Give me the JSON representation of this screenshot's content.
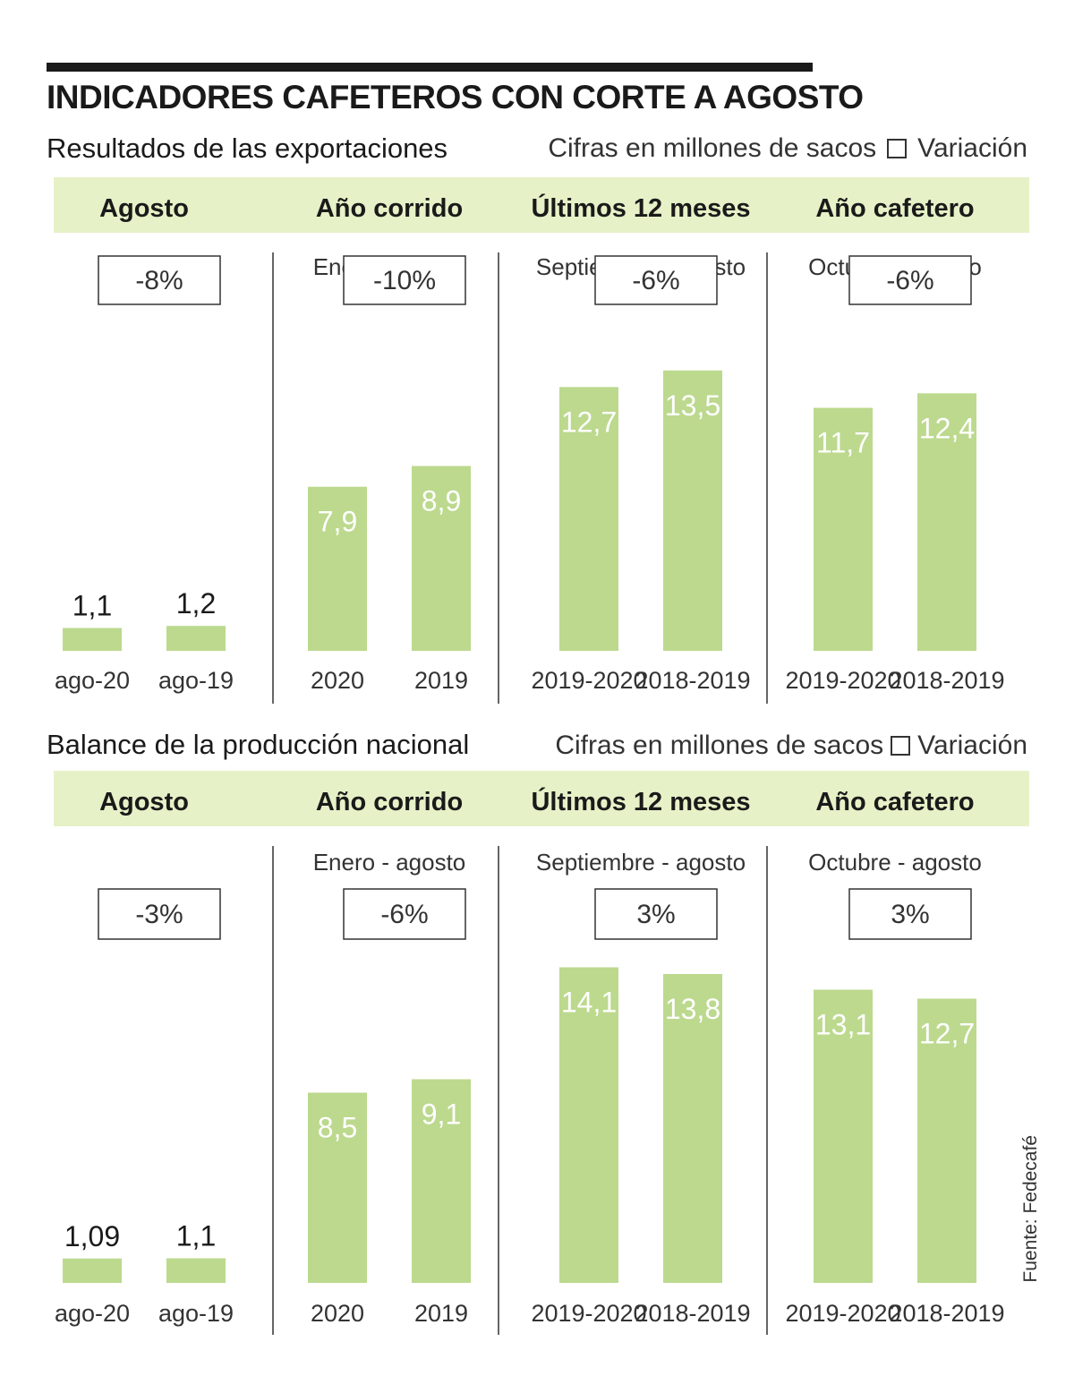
{
  "title": "INDICADORES CAFETEROS CON CORTE A AGOSTO",
  "source": "Fuente: Fedecafé",
  "colors": {
    "bar": "#bcd98e",
    "header_band": "#e6f1c7",
    "text": "#1a1a1a",
    "bar_label_inside": "#ffffff"
  },
  "chart_data": [
    {
      "type": "bar",
      "title": "Resultados de las exportaciones",
      "unit_note": "Cifras en millones de sacos",
      "legend": "Variación",
      "groups": [
        {
          "header": "Agosto",
          "subtitle": "",
          "variation": "-8%",
          "categories": [
            "ago-20",
            "ago-19"
          ],
          "values": [
            1.1,
            1.2
          ],
          "value_labels": [
            "1,1",
            "1,2"
          ]
        },
        {
          "header": "Año corrido",
          "subtitle": "Enero - agosto",
          "variation": "-10%",
          "categories": [
            "2020",
            "2019"
          ],
          "values": [
            7.9,
            8.9
          ],
          "value_labels": [
            "7,9",
            "8,9"
          ]
        },
        {
          "header": "Últimos 12 meses",
          "subtitle": "Septiembre - agosto",
          "variation": "-6%",
          "categories": [
            "2019-2020",
            "2018-2019"
          ],
          "values": [
            12.7,
            13.5
          ],
          "value_labels": [
            "12,7",
            "13,5"
          ]
        },
        {
          "header": "Año cafetero",
          "subtitle": "Octubre - agosto",
          "variation": "-6%",
          "categories": [
            "2019-2020",
            "2018-2019"
          ],
          "values": [
            11.7,
            12.4
          ],
          "value_labels": [
            "11,7",
            "12,4"
          ]
        }
      ]
    },
    {
      "type": "bar",
      "title": "Balance de la producción nacional",
      "unit_note": "Cifras en millones de sacos",
      "legend": "Variación",
      "groups": [
        {
          "header": "Agosto",
          "subtitle": "",
          "variation": "-3%",
          "categories": [
            "ago-20",
            "ago-19"
          ],
          "values": [
            1.09,
            1.1
          ],
          "value_labels": [
            "1,09",
            "1,1"
          ]
        },
        {
          "header": "Año corrido",
          "subtitle": "Enero - agosto",
          "variation": "-6%",
          "categories": [
            "2020",
            "2019"
          ],
          "values": [
            8.5,
            9.1
          ],
          "value_labels": [
            "8,5",
            "9,1"
          ]
        },
        {
          "header": "Últimos 12 meses",
          "subtitle": "Septiembre - agosto",
          "variation": "3%",
          "categories": [
            "2019-2020",
            "2018-2019"
          ],
          "values": [
            14.1,
            13.8
          ],
          "value_labels": [
            "14,1",
            "13,8"
          ]
        },
        {
          "header": "Año cafetero",
          "subtitle": "Octubre - agosto",
          "variation": "3%",
          "categories": [
            "2019-2020",
            "2018-2019"
          ],
          "values": [
            13.1,
            12.7
          ],
          "value_labels": [
            "13,1",
            "12,7"
          ]
        }
      ]
    }
  ]
}
